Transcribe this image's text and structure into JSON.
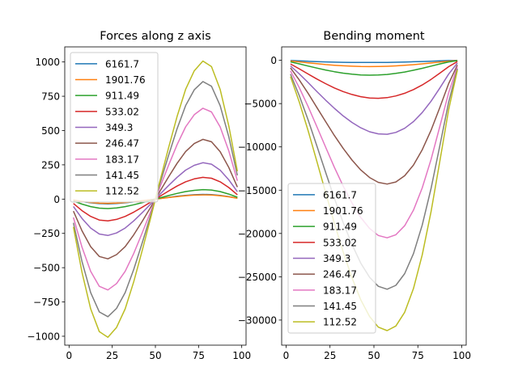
{
  "chart_data": [
    {
      "type": "line",
      "title": "Forces along z axis",
      "xlabel": "",
      "ylabel": "",
      "xlim": [
        -2.5,
        102.5
      ],
      "ylim": [
        -1065,
        1110
      ],
      "xticks": [
        0,
        25,
        50,
        75,
        100
      ],
      "yticks": [
        -1000,
        -750,
        -500,
        -250,
        0,
        250,
        500,
        750,
        1000
      ],
      "xtick_labels": [
        "0",
        "25",
        "50",
        "75",
        "100"
      ],
      "ytick_labels": [
        "−1000",
        "−750",
        "−500",
        "−250",
        "0",
        "250",
        "500",
        "750",
        "1000"
      ],
      "grid": false,
      "legend_position": "top-left",
      "x": [
        2.5,
        7.5,
        12.5,
        17.5,
        22.5,
        27.5,
        32.5,
        37.5,
        42.5,
        47.5,
        52.5,
        57.5,
        62.5,
        67.5,
        72.5,
        77.5,
        82.5,
        87.5,
        92.5,
        97.5
      ],
      "series": [
        {
          "name": "6161.7",
          "color": "#1f77b4",
          "values": [
            -6.8,
            -18.2,
            -27.3,
            -33.0,
            -34.4,
            -32.0,
            -27.3,
            -20.5,
            -12.6,
            -4.3,
            4.3,
            12.6,
            20.5,
            27.3,
            32.0,
            34.4,
            33.0,
            27.3,
            18.2,
            6.8
          ]
        },
        {
          "name": "1901.76",
          "color": "#ff7f0e",
          "values": [
            -6.2,
            -16.4,
            -24.6,
            -29.7,
            -31.0,
            -28.8,
            -24.6,
            -18.5,
            -11.3,
            -3.9,
            3.9,
            11.3,
            18.5,
            24.6,
            28.8,
            31.0,
            29.7,
            24.6,
            16.4,
            6.2
          ]
        },
        {
          "name": "911.49",
          "color": "#2ca02c",
          "values": [
            -13.9,
            -36.5,
            -54.7,
            -66.1,
            -68.9,
            -64.0,
            -54.7,
            -41.1,
            -25.2,
            -8.6,
            8.6,
            25.2,
            41.1,
            54.7,
            64.0,
            68.9,
            66.1,
            54.7,
            36.5,
            13.9
          ]
        },
        {
          "name": "533.02",
          "color": "#d62728",
          "values": [
            -32.0,
            -84.1,
            -126.2,
            -152.4,
            -158.8,
            -147.6,
            -126.2,
            -94.8,
            -58.1,
            -19.8,
            19.8,
            58.1,
            94.8,
            126.2,
            147.6,
            158.8,
            152.4,
            126.2,
            84.1,
            32.0
          ]
        },
        {
          "name": "349.3",
          "color": "#9467bd",
          "values": [
            -53.5,
            -140.6,
            -210.9,
            -254.7,
            -265.4,
            -246.7,
            -210.9,
            -158.4,
            -97.1,
            -33.1,
            33.1,
            97.1,
            158.4,
            210.9,
            246.7,
            265.4,
            254.7,
            210.9,
            140.6,
            53.5
          ]
        },
        {
          "name": "246.47",
          "color": "#8c564b",
          "values": [
            -87.8,
            -230.8,
            -346.2,
            -418.1,
            -435.7,
            -404.9,
            -346.2,
            -260.1,
            -159.4,
            -54.3,
            54.3,
            159.4,
            260.1,
            346.2,
            404.9,
            435.7,
            418.1,
            346.2,
            230.8,
            87.8
          ]
        },
        {
          "name": "183.17",
          "color": "#e377c2",
          "values": [
            -133.5,
            -350.9,
            -526.3,
            -635.7,
            -662.4,
            -615.6,
            -526.3,
            -395.4,
            -242.3,
            -82.6,
            82.6,
            242.3,
            395.4,
            526.3,
            615.6,
            662.4,
            635.7,
            526.3,
            350.9,
            133.5
          ]
        },
        {
          "name": "141.45",
          "color": "#7f7f7f",
          "values": [
            -172.8,
            -454.2,
            -681.2,
            -822.8,
            -857.4,
            -796.8,
            -681.2,
            -511.7,
            -313.6,
            -106.9,
            106.9,
            313.6,
            511.7,
            681.2,
            796.8,
            857.4,
            822.8,
            681.2,
            454.2,
            172.8
          ]
        },
        {
          "name": "112.52",
          "color": "#bcbd22",
          "values": [
            -202.9,
            -533.4,
            -800.0,
            -966.3,
            -1007.0,
            -935.8,
            -800.0,
            -601.0,
            -368.3,
            -125.5,
            125.5,
            368.3,
            601.0,
            800.0,
            935.8,
            1007.0,
            966.3,
            800.0,
            533.4,
            202.9
          ]
        }
      ]
    },
    {
      "type": "line",
      "title": "Bending moment",
      "xlabel": "",
      "ylabel": "",
      "xlim": [
        -2.5,
        102.5
      ],
      "ylim": [
        -32900,
        1550
      ],
      "xticks": [
        0,
        25,
        50,
        75,
        100
      ],
      "yticks": [
        -30000,
        -25000,
        -20000,
        -15000,
        -10000,
        -5000,
        0
      ],
      "xtick_labels": [
        "0",
        "25",
        "50",
        "75",
        "100"
      ],
      "ytick_labels": [
        "−30000",
        "−25000",
        "−20000",
        "−15000",
        "−10000",
        "−5000",
        "0"
      ],
      "grid": false,
      "legend_position": "bottom-left",
      "x": [
        2.5,
        7.5,
        12.5,
        17.5,
        22.5,
        27.5,
        32.5,
        37.5,
        42.5,
        47.5,
        52.5,
        57.5,
        62.5,
        67.5,
        72.5,
        77.5,
        82.5,
        87.5,
        92.5,
        97.5
      ],
      "series": [
        {
          "name": "6161.7",
          "color": "#1f77b4",
          "values": [
            -30,
            -65,
            -110,
            -148,
            -182,
            -210,
            -230,
            -243,
            -250,
            -252,
            -248,
            -238,
            -222,
            -199,
            -172,
            -139,
            -103,
            -66,
            -30,
            -5
          ]
        },
        {
          "name": "1901.76",
          "color": "#ff7f0e",
          "values": [
            -80,
            -180,
            -290,
            -395,
            -490,
            -570,
            -635,
            -685,
            -715,
            -727,
            -717,
            -688,
            -640,
            -578,
            -500,
            -410,
            -310,
            -205,
            -105,
            -25
          ]
        },
        {
          "name": "911.49",
          "color": "#2ca02c",
          "values": [
            -180,
            -410,
            -660,
            -900,
            -1120,
            -1315,
            -1480,
            -1605,
            -1685,
            -1720,
            -1700,
            -1630,
            -1510,
            -1350,
            -1150,
            -920,
            -670,
            -420,
            -190,
            -40
          ]
        },
        {
          "name": "533.02",
          "color": "#d62728",
          "values": [
            -420,
            -980,
            -1580,
            -2160,
            -2700,
            -3190,
            -3610,
            -3950,
            -4200,
            -4350,
            -4390,
            -4310,
            -4120,
            -3810,
            -3380,
            -2850,
            -2200,
            -1480,
            -740,
            -150
          ]
        },
        {
          "name": "349.3",
          "color": "#9467bd",
          "values": [
            -640,
            -1560,
            -2560,
            -3590,
            -4600,
            -5550,
            -6420,
            -7180,
            -7800,
            -8250,
            -8500,
            -8540,
            -8330,
            -7850,
            -7080,
            -6030,
            -4720,
            -3200,
            -1600,
            -320
          ]
        },
        {
          "name": "246.47",
          "color": "#8c564b",
          "values": [
            -880,
            -2260,
            -3800,
            -5430,
            -7080,
            -8680,
            -10180,
            -11520,
            -12660,
            -13540,
            -14100,
            -14290,
            -14050,
            -13330,
            -12090,
            -10330,
            -8080,
            -5450,
            -2700,
            -540
          ]
        },
        {
          "name": "183.17",
          "color": "#e377c2",
          "values": [
            -1220,
            -3150,
            -5320,
            -7650,
            -10030,
            -12350,
            -14530,
            -16490,
            -18150,
            -19420,
            -20230,
            -20500,
            -20150,
            -19100,
            -17300,
            -14730,
            -11450,
            -7650,
            -3750,
            -750
          ]
        },
        {
          "name": "141.45",
          "color": "#7f7f7f",
          "values": [
            -1590,
            -4060,
            -6860,
            -9860,
            -12930,
            -15930,
            -18750,
            -21270,
            -23420,
            -25060,
            -26100,
            -26440,
            -25990,
            -24640,
            -22320,
            -19020,
            -14800,
            -9880,
            -4840,
            -970
          ]
        },
        {
          "name": "112.52",
          "color": "#bcbd22",
          "values": [
            -1880,
            -4800,
            -8100,
            -11640,
            -15270,
            -18810,
            -22140,
            -25120,
            -27660,
            -29590,
            -30820,
            -31220,
            -30690,
            -29100,
            -26350,
            -22460,
            -17470,
            -11670,
            -5710,
            -1140
          ]
        }
      ]
    }
  ]
}
